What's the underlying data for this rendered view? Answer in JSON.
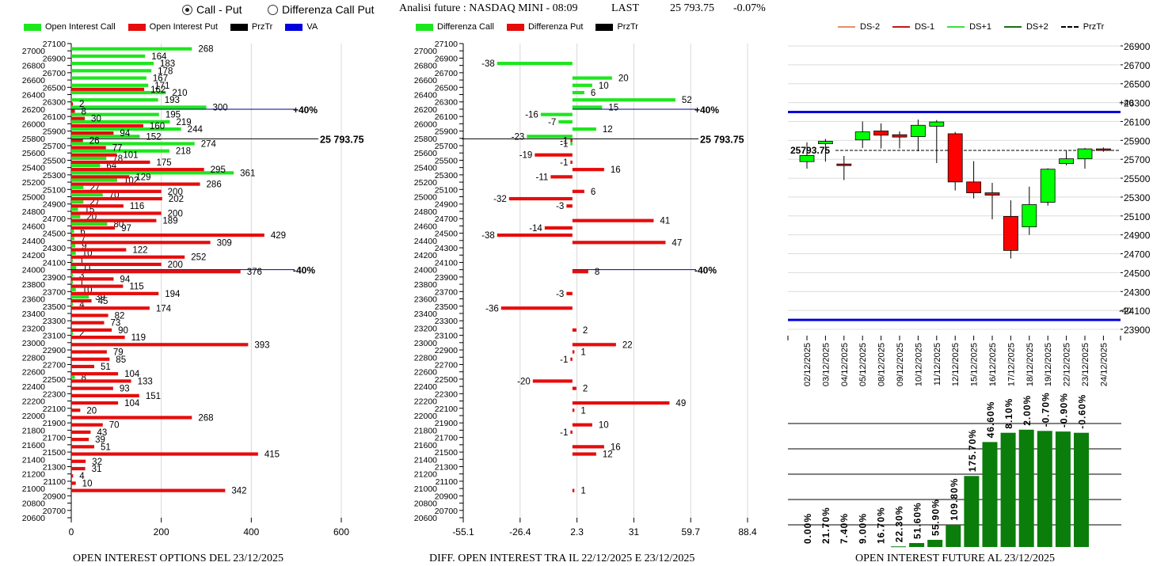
{
  "controls": {
    "radio_call_put": {
      "label": "Call - Put",
      "selected": true
    },
    "radio_diff": {
      "label": "Differenza Call Put",
      "selected": false
    }
  },
  "header": {
    "title": "Analisi future : NASDAQ MINI - 08:09",
    "last_label": "LAST",
    "last_value": "25 793.75",
    "change": "-0.07%"
  },
  "colors": {
    "call": "#1ee61e",
    "put": "#e60c0c",
    "przTr": "#000000",
    "va": "#0000dd",
    "ds_minus2": "#e0906a",
    "ds_minus1": "#c01818",
    "ds_plus1": "#3ce03c",
    "ds_plus2": "#1a6e1a",
    "candle_up": "#00ff00",
    "candle_down": "#ff0000",
    "oi_bar": "#0a7d0a"
  },
  "legend_left": [
    {
      "label": "Open Interest Call",
      "type": "call"
    },
    {
      "label": "Open Interest Put",
      "type": "put"
    },
    {
      "label": "PrzTr",
      "type": "przTr"
    },
    {
      "label": "VA",
      "type": "va"
    }
  ],
  "legend_mid": [
    {
      "label": "Differenza Call",
      "type": "call"
    },
    {
      "label": "Differenza Put",
      "type": "put"
    },
    {
      "label": "PrzTr",
      "type": "przTr"
    }
  ],
  "legend_right": [
    {
      "label": "DS-2",
      "type": "ds_minus2",
      "dashed": false
    },
    {
      "label": "DS-1",
      "type": "ds_minus1",
      "dashed": false
    },
    {
      "label": "DS+1",
      "type": "ds_plus1",
      "dashed": false
    },
    {
      "label": "DS+2",
      "type": "ds_plus2",
      "dashed": false
    },
    {
      "label": "PrzTr",
      "type": "przTr",
      "dashed": true
    }
  ],
  "footers": {
    "left": "OPEN INTEREST OPTIONS DEL 23/12/2025",
    "mid": "DIFF. OPEN INTEREST TRA IL 22/12/2025 E 23/12/2025",
    "right": "OPEN INTEREST FUTURE AL 23/12/2025"
  },
  "chart_data": [
    {
      "id": "oi_options",
      "type": "bar",
      "orientation": "horizontal",
      "title": "OPEN INTEREST OPTIONS DEL 23/12/2025",
      "ylabel": "Strike",
      "xlim": [
        0,
        600
      ],
      "xticks": [
        0,
        200,
        400,
        600
      ],
      "ylim": [
        20600,
        27100
      ],
      "grid": true,
      "price_line": {
        "value": 25793.75,
        "label": "25 793.75"
      },
      "va_lines": [
        {
          "value": 26200,
          "label": "+40%"
        },
        {
          "value": 24000,
          "label": "-40%"
        }
      ],
      "series": [
        {
          "name": "Open Interest Call",
          "color_key": "call",
          "points": [
            [
              27000,
              268
            ],
            [
              26900,
              164
            ],
            [
              26800,
              183
            ],
            [
              26700,
              178
            ],
            [
              26600,
              167
            ],
            [
              26500,
              171
            ],
            [
              26400,
              210
            ],
            [
              26300,
              193
            ],
            [
              26200,
              300
            ],
            [
              26100,
              195
            ],
            [
              26000,
              219
            ],
            [
              25900,
              244
            ],
            [
              25800,
              152
            ],
            [
              25700,
              274
            ],
            [
              25600,
              218
            ],
            [
              25500,
              78
            ],
            [
              25400,
              64
            ],
            [
              25300,
              361
            ],
            [
              25200,
              102
            ],
            [
              25100,
              27
            ],
            [
              25000,
              70
            ],
            [
              24900,
              27
            ],
            [
              24800,
              15
            ],
            [
              24700,
              20
            ],
            [
              24600,
              80
            ],
            [
              24500,
              6
            ],
            [
              24400,
              7
            ],
            [
              24300,
              9
            ],
            [
              24200,
              10
            ],
            [
              24100,
              1
            ],
            [
              24000,
              11
            ],
            [
              23900,
              3
            ],
            [
              23800,
              1
            ],
            [
              23700,
              10
            ],
            [
              23600,
              39
            ],
            [
              23500,
              4
            ],
            [
              23100,
              2
            ],
            [
              22500,
              8
            ]
          ]
        },
        {
          "name": "Open Interest Put",
          "color_key": "put",
          "points": [
            [
              26500,
              162
            ],
            [
              26300,
              2
            ],
            [
              26200,
              8
            ],
            [
              26100,
              30
            ],
            [
              26000,
              160
            ],
            [
              25900,
              94
            ],
            [
              25800,
              26
            ],
            [
              25700,
              77
            ],
            [
              25600,
              101
            ],
            [
              25500,
              175
            ],
            [
              25400,
              295
            ],
            [
              25300,
              129
            ],
            [
              25200,
              286
            ],
            [
              25100,
              200
            ],
            [
              25000,
              202
            ],
            [
              24900,
              116
            ],
            [
              24800,
              200
            ],
            [
              24700,
              189
            ],
            [
              24600,
              97
            ],
            [
              24500,
              429
            ],
            [
              24400,
              309
            ],
            [
              24300,
              122
            ],
            [
              24200,
              252
            ],
            [
              24100,
              200
            ],
            [
              24000,
              376
            ],
            [
              23900,
              94
            ],
            [
              23800,
              115
            ],
            [
              23700,
              194
            ],
            [
              23600,
              45
            ],
            [
              23500,
              174
            ],
            [
              23400,
              82
            ],
            [
              23300,
              73
            ],
            [
              23200,
              90
            ],
            [
              23100,
              119
            ],
            [
              23000,
              393
            ],
            [
              22900,
              79
            ],
            [
              22800,
              85
            ],
            [
              22700,
              51
            ],
            [
              22600,
              104
            ],
            [
              22500,
              133
            ],
            [
              22400,
              93
            ],
            [
              22300,
              151
            ],
            [
              22200,
              104
            ],
            [
              22100,
              20
            ],
            [
              22000,
              268
            ],
            [
              21900,
              70
            ],
            [
              21800,
              43
            ],
            [
              21700,
              39
            ],
            [
              21600,
              51
            ],
            [
              21500,
              415
            ],
            [
              21400,
              32
            ],
            [
              21300,
              31
            ],
            [
              21200,
              4
            ],
            [
              21100,
              10
            ],
            [
              21000,
              342
            ]
          ]
        }
      ]
    },
    {
      "id": "diff_oi",
      "type": "bar",
      "orientation": "horizontal",
      "title": "DIFF. OPEN INTEREST TRA IL 22/12/2025 E 23/12/2025",
      "xlim": [
        -55.1,
        88.4
      ],
      "xticks": [
        -55.1,
        -26.4,
        2.3,
        31,
        59.7,
        88.4
      ],
      "ylim": [
        20600,
        27100
      ],
      "grid": true,
      "price_line": {
        "value": 25793.75,
        "label": "25 793.75"
      },
      "va_lines": [
        {
          "value": 26200,
          "label": "+40%"
        },
        {
          "value": 24000,
          "label": "-40%"
        }
      ],
      "series": [
        {
          "name": "Differenza Call",
          "color_key": "call",
          "points": [
            [
              26800,
              -38
            ],
            [
              26600,
              20
            ],
            [
              26500,
              10
            ],
            [
              26400,
              6
            ],
            [
              26300,
              52
            ],
            [
              26200,
              15
            ],
            [
              26100,
              -16
            ],
            [
              26000,
              -7
            ],
            [
              25900,
              12
            ],
            [
              25800,
              -23
            ],
            [
              25700,
              -1
            ]
          ]
        },
        {
          "name": "Differenza Put",
          "color_key": "put",
          "points": [
            [
              25800,
              -1
            ],
            [
              25600,
              -19
            ],
            [
              25500,
              -1
            ],
            [
              25400,
              16
            ],
            [
              25300,
              -11
            ],
            [
              25100,
              6
            ],
            [
              25000,
              -32
            ],
            [
              24900,
              -3
            ],
            [
              24700,
              41
            ],
            [
              24600,
              -14
            ],
            [
              24500,
              -38
            ],
            [
              24400,
              47
            ],
            [
              24000,
              8
            ],
            [
              23700,
              -3
            ],
            [
              23500,
              -36
            ],
            [
              23200,
              2
            ],
            [
              23000,
              22
            ],
            [
              22900,
              1
            ],
            [
              22800,
              -1
            ],
            [
              22500,
              -20
            ],
            [
              22400,
              2
            ],
            [
              22200,
              49
            ],
            [
              22100,
              1
            ],
            [
              21900,
              10
            ],
            [
              21800,
              -1
            ],
            [
              21600,
              16
            ],
            [
              21500,
              12
            ],
            [
              21000,
              1
            ]
          ]
        }
      ]
    },
    {
      "id": "candles",
      "type": "candlestick",
      "ylim": [
        23900,
        26900
      ],
      "yticks": [
        26900,
        26700,
        26500,
        26300,
        26100,
        25900,
        25700,
        25500,
        25300,
        25100,
        24900,
        24700,
        24500,
        24300,
        24100,
        23900
      ],
      "grid": true,
      "price_line": {
        "value": 25793.75,
        "label": "25793.75"
      },
      "va_lines": [
        {
          "value": 26200,
          "label": "+40"
        },
        {
          "value": 24000,
          "label": "-40"
        }
      ],
      "candles": [
        {
          "date": "02/12/2025",
          "open": 25675,
          "close": 25740,
          "high": 25880,
          "low": 25600,
          "dir": "up"
        },
        {
          "date": "03/12/2025",
          "open": 25865,
          "close": 25890,
          "high": 25915,
          "low": 25675,
          "dir": "up"
        },
        {
          "date": "04/12/2025",
          "open": 25650,
          "close": 25635,
          "high": 25735,
          "low": 25480,
          "dir": "down"
        },
        {
          "date": "05/12/2025",
          "open": 25905,
          "close": 25990,
          "high": 26100,
          "low": 25820,
          "dir": "up"
        },
        {
          "date": "08/12/2025",
          "open": 26000,
          "close": 25955,
          "high": 26080,
          "low": 25815,
          "dir": "down"
        },
        {
          "date": "09/12/2025",
          "open": 25960,
          "close": 25935,
          "high": 25995,
          "low": 25815,
          "dir": "down"
        },
        {
          "date": "10/12/2025",
          "open": 25940,
          "close": 26060,
          "high": 26120,
          "low": 25785,
          "dir": "up"
        },
        {
          "date": "11/12/2025",
          "open": 26050,
          "close": 26095,
          "high": 26115,
          "low": 25660,
          "dir": "up"
        },
        {
          "date": "12/12/2025",
          "open": 25970,
          "close": 25460,
          "high": 25990,
          "low": 25370,
          "dir": "down"
        },
        {
          "date": "15/12/2025",
          "open": 25460,
          "close": 25345,
          "high": 25680,
          "low": 25285,
          "dir": "down"
        },
        {
          "date": "16/12/2025",
          "open": 25345,
          "close": 25320,
          "high": 25450,
          "low": 25065,
          "dir": "down"
        },
        {
          "date": "17/12/2025",
          "open": 25095,
          "close": 24735,
          "high": 25265,
          "low": 24650,
          "dir": "down"
        },
        {
          "date": "18/12/2025",
          "open": 24985,
          "close": 25220,
          "high": 25410,
          "low": 24900,
          "dir": "up"
        },
        {
          "date": "19/12/2025",
          "open": 25245,
          "close": 25595,
          "high": 25605,
          "low": 25210,
          "dir": "up"
        },
        {
          "date": "22/12/2025",
          "open": 25655,
          "close": 25705,
          "high": 25795,
          "low": 25635,
          "dir": "up"
        },
        {
          "date": "23/12/2025",
          "open": 25705,
          "close": 25810,
          "high": 25820,
          "low": 25600,
          "dir": "up"
        },
        {
          "date": "24/12/2025",
          "open": 25810,
          "close": 25795,
          "high": 25825,
          "low": 25780,
          "dir": "down"
        }
      ]
    },
    {
      "id": "oi_future",
      "type": "bar",
      "title": "OPEN INTEREST FUTURE AL 23/12/2025",
      "categories": [
        "02/12/2025",
        "03/12/2025",
        "04/12/2025",
        "05/12/2025",
        "08/12/2025",
        "09/12/2025",
        "10/12/2025",
        "11/12/2025",
        "12/12/2025",
        "15/12/2025",
        "16/12/2025",
        "17/12/2025",
        "18/12/2025",
        "19/12/2025",
        "22/12/2025",
        "23/12/2025"
      ],
      "relative_values": [
        0,
        0,
        0,
        0,
        0,
        0.005,
        0.032,
        0.058,
        0.18,
        0.575,
        0.85,
        0.925,
        0.95,
        0.94,
        0.935,
        0.925
      ],
      "labels": [
        "0.00%",
        "21.70%",
        "7.40%",
        "9.00%",
        "16.70%",
        "22.30%",
        "51.60%",
        "55.90%",
        "109.80%",
        "175.70%",
        "46.60%",
        "8.10%",
        "2.00%",
        "-0.70%",
        "-0.90%",
        "-0.60%"
      ],
      "grid": true
    }
  ]
}
